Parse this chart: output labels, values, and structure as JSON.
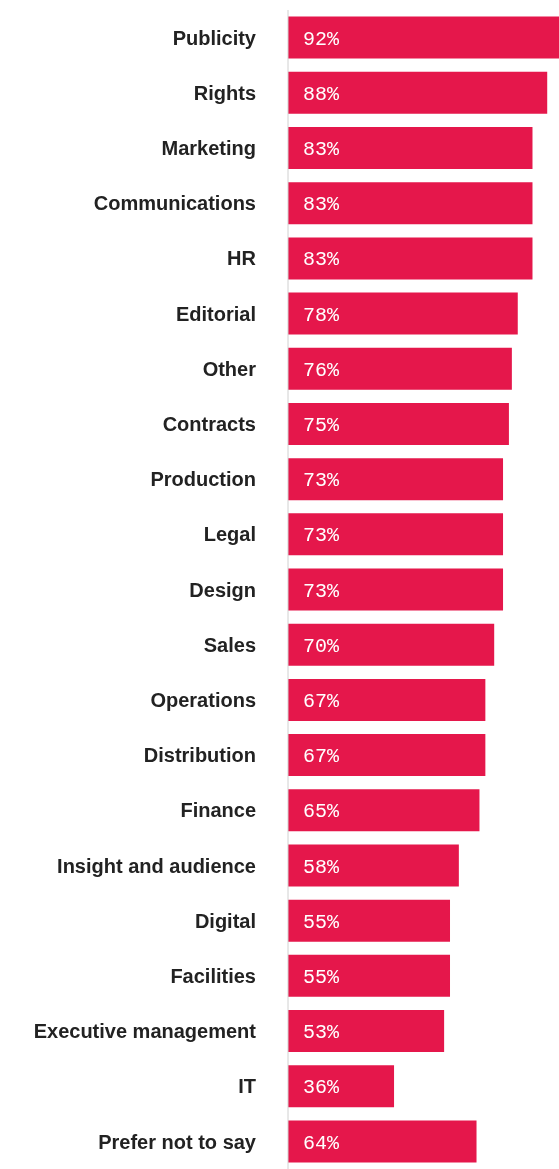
{
  "chart_data": {
    "type": "bar",
    "orientation": "horizontal",
    "categories": [
      "Publicity",
      "Rights",
      "Marketing",
      "Communications",
      "HR",
      "Editorial",
      "Other",
      "Contracts",
      "Production",
      "Legal",
      "Design",
      "Sales",
      "Operations",
      "Distribution",
      "Finance",
      "Insight and audience",
      "Digital",
      "Facilities",
      "Executive management",
      "IT",
      "Prefer not to say"
    ],
    "values": [
      92,
      88,
      83,
      83,
      83,
      78,
      76,
      75,
      73,
      73,
      73,
      70,
      67,
      67,
      65,
      58,
      55,
      55,
      53,
      36,
      64
    ],
    "value_labels": [
      "92%",
      "88%",
      "83%",
      "83%",
      "83%",
      "78%",
      "76%",
      "75%",
      "73%",
      "73%",
      "73%",
      "70%",
      "67%",
      "67%",
      "65%",
      "58%",
      "55%",
      "55%",
      "53%",
      "36%",
      "64%"
    ],
    "color": "#e5174b",
    "grid": false,
    "legend": false
  }
}
